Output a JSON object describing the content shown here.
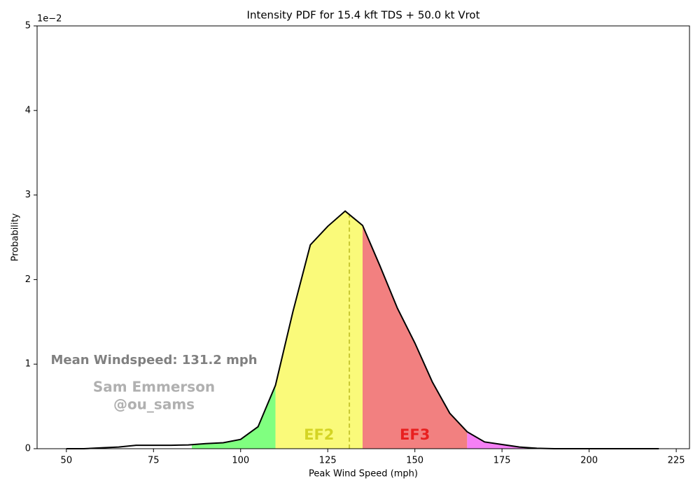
{
  "chart_data": {
    "type": "line",
    "title": "Intensity PDF for 15.4 kft TDS + 50.0 kt Vrot",
    "xlabel": "Peak Wind Speed (mph)",
    "ylabel": "Probability",
    "y_offset_label": "1e−2",
    "x": [
      50,
      55,
      60,
      65,
      70,
      75,
      80,
      85,
      90,
      95,
      100,
      105,
      110,
      115,
      120,
      125,
      130,
      135,
      140,
      145,
      150,
      155,
      160,
      165,
      170,
      175,
      180,
      185,
      190,
      195,
      200,
      205,
      210,
      215,
      220
    ],
    "values": [
      0,
      0,
      0.01,
      0.02,
      0.04,
      0.04,
      0.04,
      0.045,
      0.06,
      0.07,
      0.11,
      0.26,
      0.75,
      1.62,
      2.41,
      2.63,
      2.81,
      2.64,
      2.16,
      1.66,
      1.25,
      0.79,
      0.42,
      0.2,
      0.08,
      0.05,
      0.02,
      0.005,
      0,
      0,
      0,
      0,
      0,
      0,
      0
    ],
    "color": "#000000",
    "xlim": [
      41.6,
      228.8
    ],
    "ylim": [
      0,
      5
    ],
    "xticks": [
      50,
      75,
      100,
      125,
      150,
      175,
      200,
      225
    ],
    "yticks": [
      0,
      1,
      2,
      3,
      4,
      5
    ],
    "mean": 131.2,
    "mean_color": "#c8c832",
    "regions": [
      {
        "start": 86,
        "end": 110,
        "color": "#80ff80"
      },
      {
        "start": 110,
        "end": 135,
        "color": "#fafa7a",
        "label": "EF2",
        "label_color": "#d4d424"
      },
      {
        "start": 135,
        "end": 165,
        "color": "#f28080",
        "label": "EF3",
        "label_color": "#e82020"
      },
      {
        "start": 165,
        "end": 200,
        "color": "#f580f5"
      }
    ],
    "annotations": [
      "Mean Windspeed: 131.2 mph",
      "Sam Emmerson",
      "@ou_sams"
    ]
  }
}
